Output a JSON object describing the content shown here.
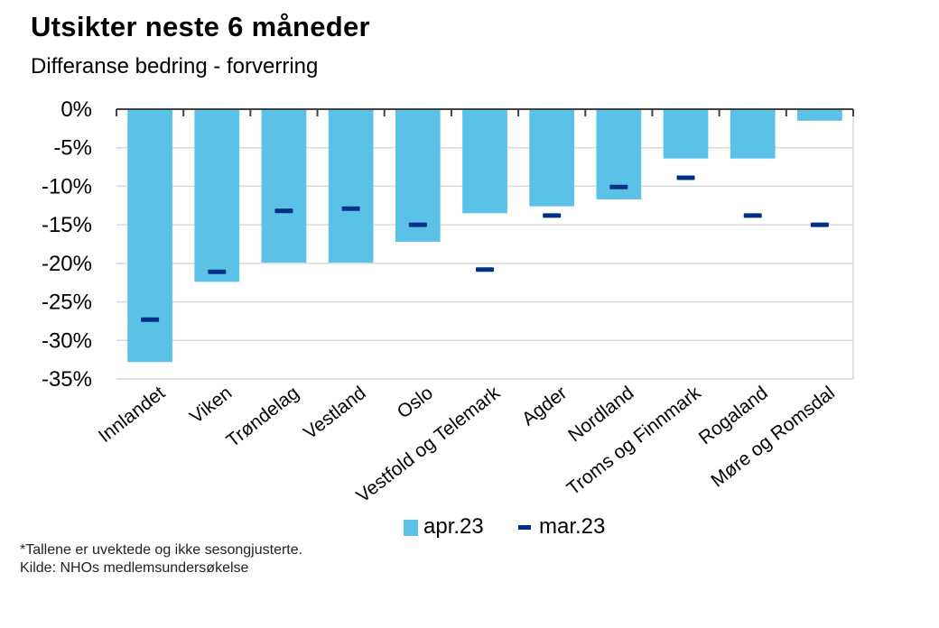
{
  "title": "Utsikter neste 6 måneder",
  "subtitle": "Differanse bedring - forverring",
  "footnote": "*Tallene er uvektede og ikke sesongjusterte.",
  "source": "Kilde: NHOs medlemsundersøkelse",
  "colors": {
    "bar": "#5BC2E7",
    "marker": "#002F87",
    "grid": "#D9D9D9",
    "axis": "#404040"
  },
  "chart_data": {
    "type": "bar",
    "title": "Utsikter neste 6 måneder",
    "subtitle": "Differanse bedring - forverring",
    "categories": [
      "Innlandet",
      "Viken",
      "Trøndelag",
      "Vestland",
      "Oslo",
      "Vestfold og Telemark",
      "Agder",
      "Nordland",
      "Troms og Finnmark",
      "Rogaland",
      "Møre og Romsdal"
    ],
    "series": [
      {
        "name": "apr.23",
        "kind": "bar",
        "values": [
          -32.8,
          -22.4,
          -19.9,
          -19.9,
          -17.2,
          -13.5,
          -12.6,
          -11.7,
          -6.4,
          -6.4,
          -1.5
        ]
      },
      {
        "name": "mar.23",
        "kind": "marker",
        "values": [
          -27.3,
          -21.1,
          -13.2,
          -12.9,
          -15.0,
          -20.8,
          -13.8,
          -10.1,
          -8.9,
          -13.8,
          -15.0
        ]
      }
    ],
    "y_ticks": [
      "0%",
      "-5%",
      "-10%",
      "-15%",
      "-20%",
      "-25%",
      "-30%",
      "-35%"
    ],
    "ylim": [
      -35,
      0
    ],
    "grid": true,
    "legend_position": "bottom"
  }
}
